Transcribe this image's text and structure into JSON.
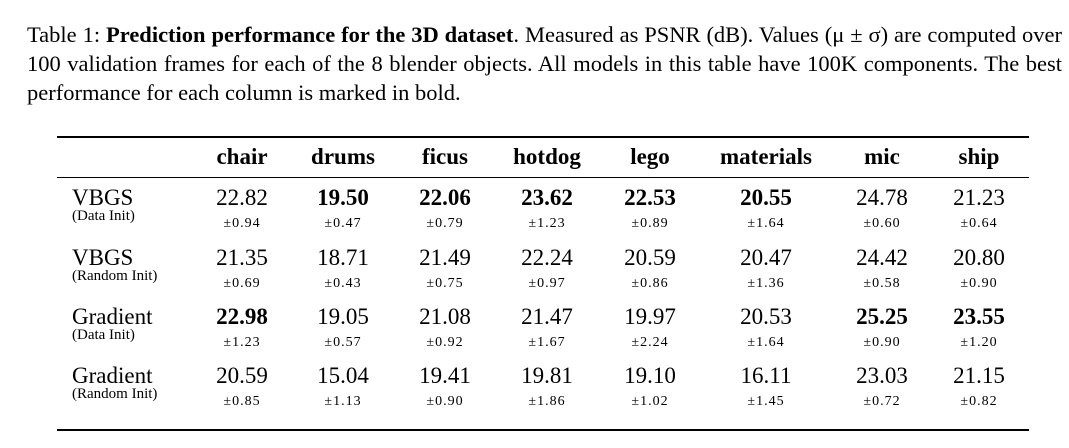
{
  "caption": {
    "label": "Table 1:",
    "title": "Prediction performance for the 3D dataset",
    "text": ". Measured as PSNR (dB). Values (μ ± σ) are computed over 100 validation frames for each of the 8 blender objects. All models in this table have 100K components. The best performance for each column is marked in bold."
  },
  "columns": [
    "chair",
    "drums",
    "ficus",
    "hotdog",
    "lego",
    "materials",
    "mic",
    "ship"
  ],
  "rows": [
    {
      "method": "VBGS",
      "init": "(Data Init)",
      "values": [
        "22.82",
        "19.50",
        "22.06",
        "23.62",
        "22.53",
        "20.55",
        "24.78",
        "21.23"
      ],
      "sds": [
        "±0.94",
        "±0.47",
        "±0.79",
        "±1.23",
        "±0.89",
        "±1.64",
        "±0.60",
        "±0.64"
      ],
      "bold": [
        false,
        true,
        true,
        true,
        true,
        true,
        false,
        false
      ]
    },
    {
      "method": "VBGS",
      "init": "(Random Init)",
      "values": [
        "21.35",
        "18.71",
        "21.49",
        "22.24",
        "20.59",
        "20.47",
        "24.42",
        "20.80"
      ],
      "sds": [
        "±0.69",
        "±0.43",
        "±0.75",
        "±0.97",
        "±0.86",
        "±1.36",
        "±0.58",
        "±0.90"
      ],
      "bold": [
        false,
        false,
        false,
        false,
        false,
        false,
        false,
        false
      ]
    },
    {
      "method": "Gradient",
      "init": "(Data Init)",
      "values": [
        "22.98",
        "19.05",
        "21.08",
        "21.47",
        "19.97",
        "20.53",
        "25.25",
        "23.55"
      ],
      "sds": [
        "±1.23",
        "±0.57",
        "±0.92",
        "±1.67",
        "±2.24",
        "±1.64",
        "±0.90",
        "±1.20"
      ],
      "bold": [
        true,
        false,
        false,
        false,
        false,
        false,
        true,
        true
      ]
    },
    {
      "method": "Gradient",
      "init": "(Random Init)",
      "values": [
        "20.59",
        "15.04",
        "19.41",
        "19.81",
        "19.10",
        "16.11",
        "23.03",
        "21.15"
      ],
      "sds": [
        "±0.85",
        "±1.13",
        "±0.90",
        "±1.86",
        "±1.02",
        "±1.45",
        "±0.72",
        "±0.82"
      ],
      "bold": [
        false,
        false,
        false,
        false,
        false,
        false,
        false,
        false
      ]
    }
  ]
}
